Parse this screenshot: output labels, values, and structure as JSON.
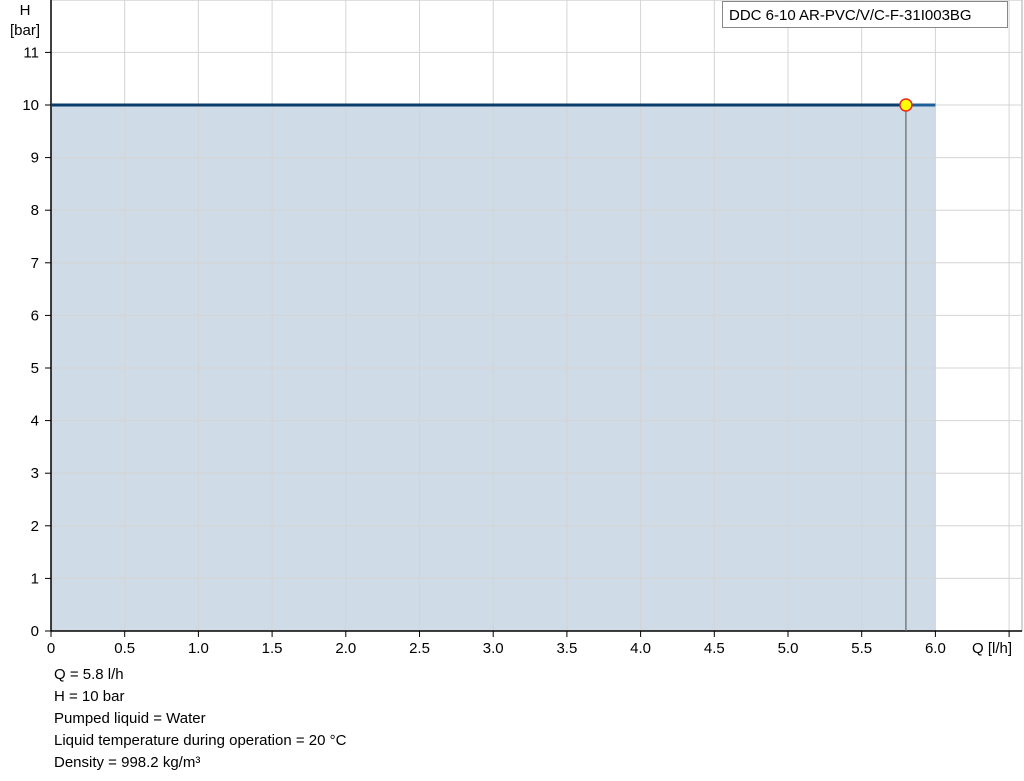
{
  "chart_data": {
    "type": "area",
    "title": "DDC 6-10 AR-PVC/V/C-F-31I003BG",
    "xlabel": "Q [l/h]",
    "ylabel_line1": "H",
    "ylabel_line2": "[bar]",
    "xlim": [
      0,
      6.5
    ],
    "ylim": [
      0,
      12
    ],
    "x_ticks": [
      "0",
      "0.5",
      "1.0",
      "1.5",
      "2.0",
      "2.5",
      "3.0",
      "3.5",
      "4.0",
      "4.5",
      "5.0",
      "5.5",
      "6.0"
    ],
    "y_ticks": [
      "0",
      "1",
      "2",
      "3",
      "4",
      "5",
      "6",
      "7",
      "8",
      "9",
      "10",
      "11"
    ],
    "grid": true,
    "series": [
      {
        "x": [
          0,
          6.0
        ],
        "y": [
          10,
          10
        ]
      }
    ],
    "operating_point": {
      "x": 5.8,
      "y": 10
    },
    "colors": {
      "area": "#cfdbe6",
      "line": "#0a3d6b",
      "line_after": "#1f5f99",
      "point_fill": "#ffff00",
      "point_stroke": "#e8261c",
      "grid": "#d4d4d4"
    }
  },
  "info": [
    "Q = 5.8 l/h",
    "H = 10 bar",
    "Pumped liquid = Water",
    "Liquid temperature during operation = 20 °C",
    "Density = 998.2 kg/m³"
  ]
}
